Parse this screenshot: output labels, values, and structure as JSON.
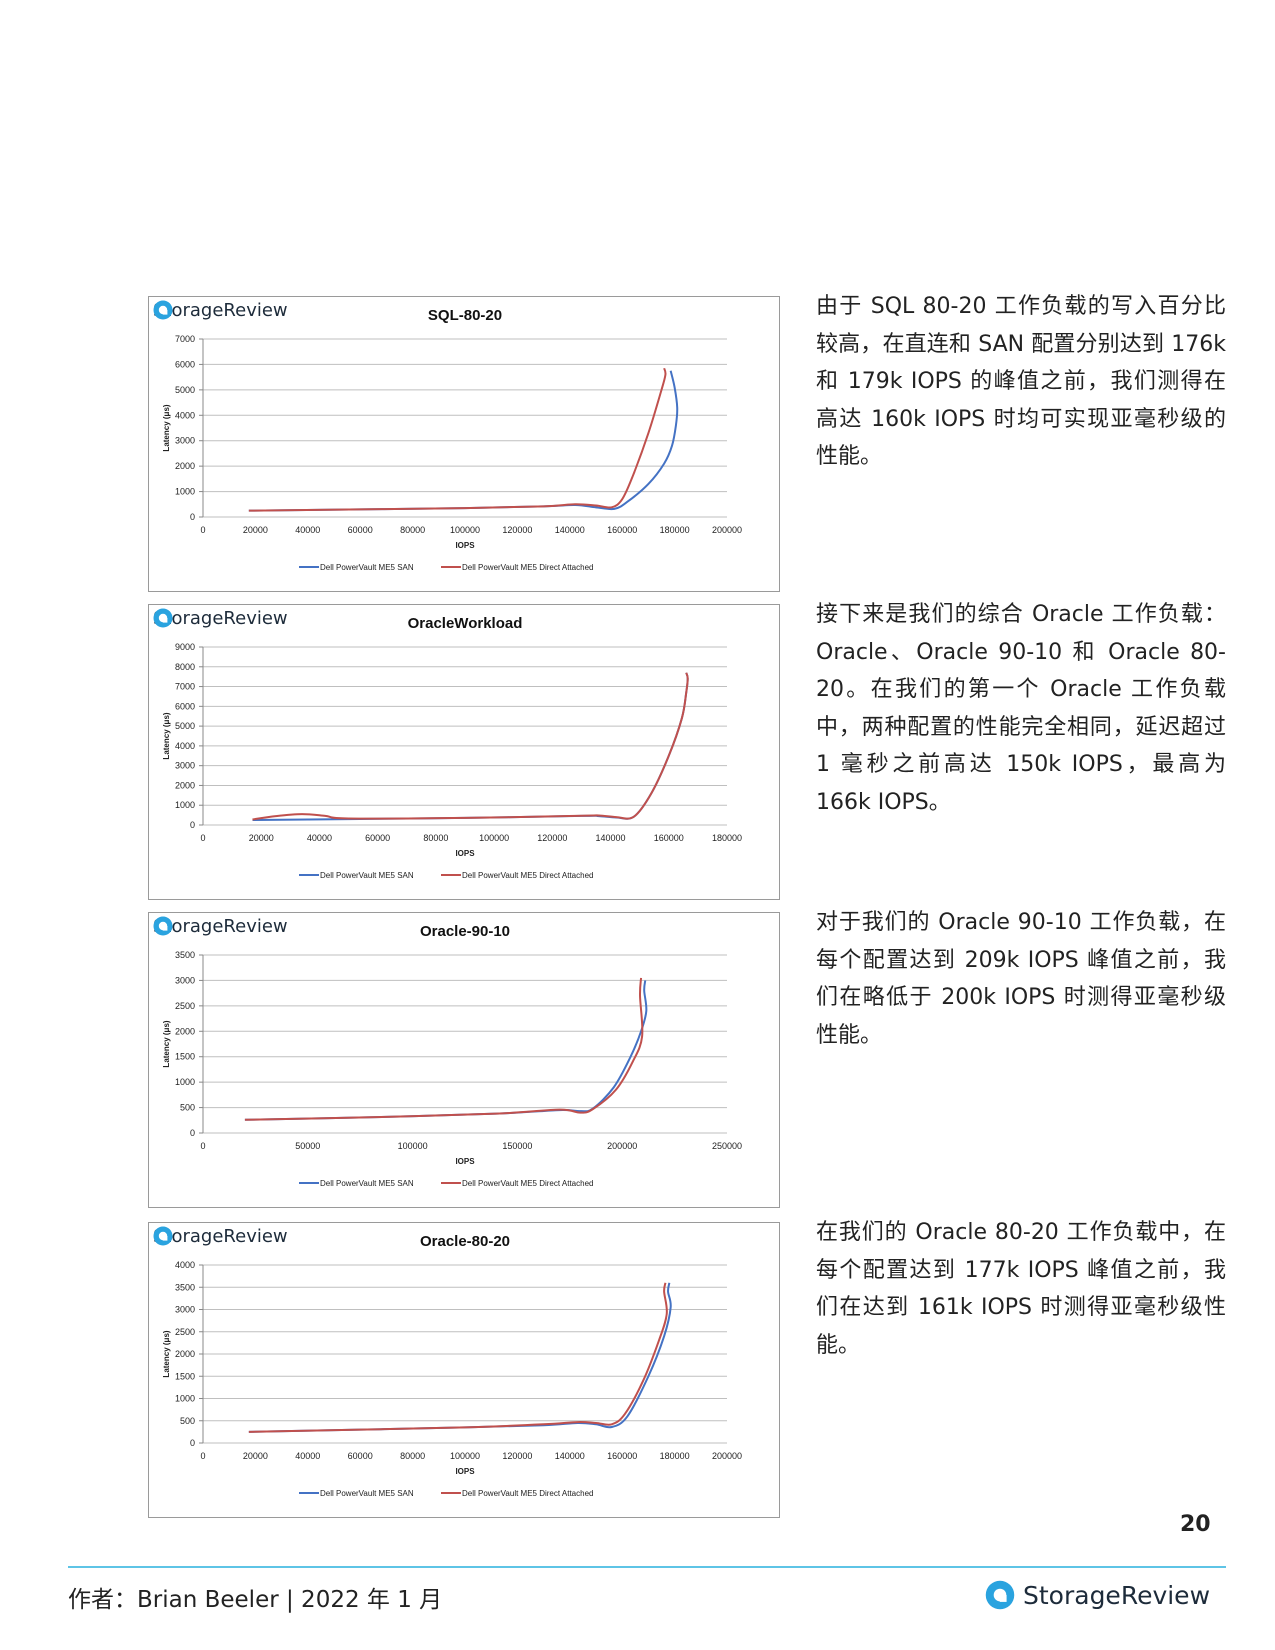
{
  "brand_name": "StorageReview",
  "legend_san": "Dell PowerVault ME5 SAN",
  "legend_da": "Dell PowerVault ME5 Direct Attached",
  "colors": {
    "san": "#4472c4",
    "direct_attached": "#c0504d",
    "grid": "#bfbfbf",
    "accent": "#5ec4e6"
  },
  "paragraphs": [
    "由于 SQL 80-20 工作负载的写入百分比较高，在直连和 SAN 配置分别达到 176k 和 179k IOPS 的峰值之前，我们测得在高达 160k IOPS 时均可实现亚毫秒级的性能。",
    "接下来是我们的综合 Oracle 工作负载：Oracle、Oracle 90-10 和 Oracle 80-20。在我们的第一个 Oracle 工作负载中，两种配置的性能完全相同，延迟超过 1 毫秒之前高达 150k IOPS，最高为 166k IOPS。",
    "对于我们的 Oracle 90-10 工作负载，在每个配置达到 209k IOPS 峰值之前，我们在略低于 200k IOPS 时测得亚毫秒级性能。",
    "在我们的 Oracle 80-20 工作负载中，在每个配置达到 177k IOPS 峰值之前，我们在达到 161k IOPS 时测得亚毫秒级性能。"
  ],
  "page_number": "20",
  "footer": {
    "author": "作者：Brian Beeler | 2022 年 1 月",
    "brand": "StorageReview"
  },
  "chart_data": [
    {
      "type": "line",
      "title": "SQL-80-20",
      "xlabel": "IOPS",
      "ylabel": "Latency (μs)",
      "xlim": [
        0,
        200000
      ],
      "ylim": [
        0,
        7000
      ],
      "x_ticks": [
        "0",
        "20000",
        "40000",
        "60000",
        "80000",
        "100000",
        "120000",
        "140000",
        "160000",
        "180000",
        "200000"
      ],
      "y_ticks": [
        "0",
        "1000",
        "2000",
        "3000",
        "4000",
        "5000",
        "6000",
        "7000"
      ],
      "legend": "bottom",
      "series": [
        {
          "name": "Dell PowerVault ME5 SAN",
          "color": "#4472c4",
          "x": [
            17500,
            60000,
            100000,
            130000,
            142000,
            150000,
            157000,
            162000,
            170000,
            176000,
            179000,
            180500,
            181000,
            180000,
            178500
          ],
          "y": [
            250,
            300,
            350,
            420,
            470,
            380,
            320,
            600,
            1300,
            2100,
            2800,
            3600,
            4300,
            5100,
            5750
          ]
        },
        {
          "name": "Dell PowerVault ME5 Direct Attached",
          "color": "#c0504d",
          "x": [
            17500,
            60000,
            100000,
            130000,
            142000,
            150000,
            156000,
            160000,
            164000,
            170000,
            175000,
            176500,
            176000
          ],
          "y": [
            250,
            300,
            350,
            420,
            500,
            450,
            380,
            700,
            1600,
            3300,
            5000,
            5600,
            5850
          ]
        }
      ]
    },
    {
      "type": "line",
      "title": "OracleWorkload",
      "xlabel": "IOPS",
      "ylabel": "Latency (μs)",
      "xlim": [
        0,
        180000
      ],
      "ylim": [
        0,
        9000
      ],
      "x_ticks": [
        "0",
        "20000",
        "40000",
        "60000",
        "80000",
        "100000",
        "120000",
        "140000",
        "160000",
        "180000"
      ],
      "y_ticks": [
        "0",
        "1000",
        "2000",
        "3000",
        "4000",
        "5000",
        "6000",
        "7000",
        "8000",
        "9000"
      ],
      "legend": "bottom",
      "series": [
        {
          "name": "Dell PowerVault ME5 SAN",
          "color": "#4472c4",
          "x": [
            17000,
            50000,
            90000,
            130000,
            136000,
            142000,
            148000,
            154000,
            160000,
            164500,
            166000,
            166500,
            166000
          ],
          "y": [
            250,
            300,
            360,
            460,
            450,
            380,
            420,
            1600,
            3500,
            5400,
            6700,
            7400,
            7700
          ]
        },
        {
          "name": "Dell PowerVault ME5 Direct Attached",
          "color": "#c0504d",
          "x": [
            17000,
            25000,
            34000,
            42000,
            50000,
            90000,
            130000,
            136000,
            142000,
            148000,
            154000,
            160000,
            164500,
            166000,
            166500,
            166000
          ],
          "y": [
            280,
            450,
            550,
            460,
            330,
            360,
            470,
            480,
            400,
            420,
            1600,
            3500,
            5400,
            6700,
            7400,
            7700
          ]
        }
      ]
    },
    {
      "type": "line",
      "title": "Oracle-90-10",
      "xlabel": "IOPS",
      "ylabel": "Latency (μs)",
      "xlim": [
        0,
        250000
      ],
      "ylim": [
        0,
        3500
      ],
      "x_ticks": [
        "0",
        "50000",
        "100000",
        "150000",
        "200000",
        "250000"
      ],
      "y_ticks": [
        "0",
        "500",
        "1000",
        "1500",
        "2000",
        "2500",
        "3000",
        "3500"
      ],
      "legend": "bottom",
      "series": [
        {
          "name": "Dell PowerVault ME5 SAN",
          "color": "#4472c4",
          "x": [
            20000,
            80000,
            140000,
            170000,
            180000,
            186000,
            196000,
            204000,
            209000,
            211500,
            210500,
            211000
          ],
          "y": [
            260,
            310,
            380,
            450,
            430,
            480,
            900,
            1500,
            2000,
            2400,
            2800,
            3000
          ]
        },
        {
          "name": "Dell PowerVault ME5 Direct Attached",
          "color": "#c0504d",
          "x": [
            20000,
            80000,
            140000,
            170000,
            180000,
            186000,
            197000,
            205000,
            209500,
            208500,
            209000
          ],
          "y": [
            260,
            310,
            380,
            460,
            400,
            470,
            850,
            1400,
            1900,
            2700,
            3050
          ]
        }
      ]
    },
    {
      "type": "line",
      "title": "Oracle-80-20",
      "xlabel": "IOPS",
      "ylabel": "Latency (μs)",
      "xlim": [
        0,
        200000
      ],
      "ylim": [
        0,
        4000
      ],
      "x_ticks": [
        "0",
        "20000",
        "40000",
        "60000",
        "80000",
        "100000",
        "120000",
        "140000",
        "160000",
        "180000",
        "200000"
      ],
      "y_ticks": [
        "0",
        "500",
        "1000",
        "1500",
        "2000",
        "2500",
        "3000",
        "3500",
        "4000"
      ],
      "legend": "bottom",
      "series": [
        {
          "name": "Dell PowerVault ME5 SAN",
          "color": "#4472c4",
          "x": [
            17500,
            60000,
            100000,
            130000,
            143000,
            150000,
            156000,
            162000,
            170000,
            176000,
            178500,
            177500,
            178000
          ],
          "y": [
            250,
            300,
            350,
            400,
            450,
            420,
            360,
            600,
            1500,
            2400,
            3050,
            3400,
            3600
          ]
        },
        {
          "name": "Dell PowerVault ME5 Direct Attached",
          "color": "#c0504d",
          "x": [
            17500,
            60000,
            100000,
            130000,
            143000,
            150000,
            156000,
            161000,
            168000,
            174000,
            177000,
            176000,
            176500
          ],
          "y": [
            250,
            300,
            350,
            420,
            470,
            450,
            420,
            650,
            1400,
            2300,
            2900,
            3400,
            3600
          ]
        }
      ]
    }
  ]
}
